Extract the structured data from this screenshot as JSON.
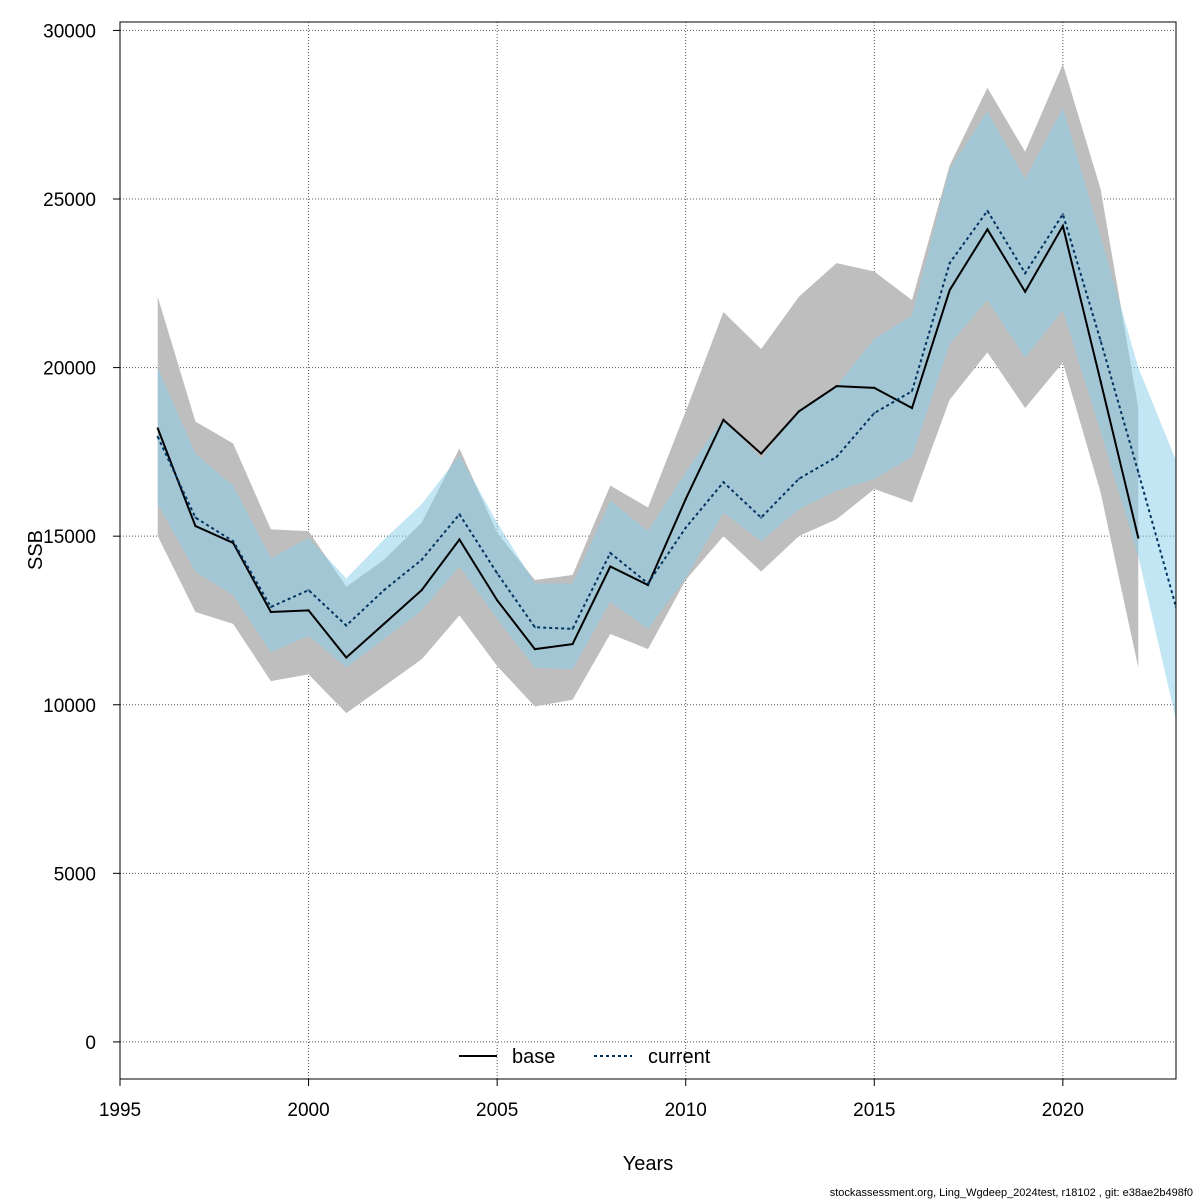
{
  "chart_data": {
    "type": "line",
    "title": "",
    "xlabel": "Years",
    "ylabel": "SSB",
    "xlim": [
      1995,
      2023
    ],
    "ylim": [
      -1100,
      30250
    ],
    "x_ticks": [
      1995,
      2000,
      2005,
      2010,
      2015,
      2020
    ],
    "y_ticks": [
      0,
      5000,
      10000,
      15000,
      20000,
      25000,
      30000
    ],
    "grid": true,
    "legend_position": "bottom-center",
    "series": [
      {
        "name": "base",
        "line_style": "solid",
        "line_color": "#000000",
        "band_color": "#bebebe",
        "x": [
          1996,
          1997,
          1998,
          1999,
          2000,
          2001,
          2002,
          2003,
          2004,
          2005,
          2006,
          2007,
          2008,
          2009,
          2010,
          2011,
          2012,
          2013,
          2014,
          2015,
          2016,
          2017,
          2018,
          2019,
          2020,
          2021,
          2022
        ],
        "values": [
          18200,
          15300,
          14800,
          12750,
          12800,
          11400,
          12400,
          13400,
          14900,
          13100,
          11650,
          11800,
          14100,
          13550,
          16100,
          18450,
          17450,
          18700,
          19450,
          19400,
          18800,
          22300,
          24100,
          22250,
          24200,
          19600,
          14950
        ],
        "lower": [
          15000,
          12750,
          12400,
          10700,
          10900,
          9750,
          10550,
          11350,
          12650,
          11150,
          9950,
          10150,
          12100,
          11650,
          13700,
          15000,
          13950,
          15000,
          15500,
          16400,
          16000,
          19050,
          20450,
          18800,
          20150,
          16300,
          11100
        ],
        "upper": [
          22100,
          18400,
          17750,
          15200,
          15150,
          13500,
          14300,
          15400,
          17600,
          15100,
          13700,
          13850,
          16500,
          15850,
          18700,
          21650,
          20550,
          22100,
          23100,
          22850,
          22000,
          26000,
          28300,
          26400,
          29000,
          25300,
          18800
        ]
      },
      {
        "name": "current",
        "line_style": "dotted",
        "line_color": "#00335f",
        "band_color": "#87ceeb",
        "x": [
          1996,
          1997,
          1998,
          1999,
          2000,
          2001,
          2002,
          2003,
          2004,
          2005,
          2006,
          2007,
          2008,
          2009,
          2010,
          2011,
          2012,
          2013,
          2014,
          2015,
          2016,
          2017,
          2018,
          2019,
          2020,
          2021,
          2022,
          2023
        ],
        "values": [
          17950,
          15550,
          14850,
          12900,
          13400,
          12350,
          13400,
          14300,
          15650,
          13900,
          12300,
          12250,
          14500,
          13600,
          15250,
          16600,
          15550,
          16700,
          17350,
          18650,
          19300,
          23100,
          24650,
          22800,
          24550,
          20800,
          16900,
          12900
        ],
        "lower": [
          15950,
          13950,
          13250,
          11550,
          12050,
          11100,
          11950,
          12800,
          14100,
          12550,
          11100,
          11050,
          13050,
          12250,
          13750,
          15700,
          14850,
          15800,
          16350,
          16700,
          17350,
          20700,
          22000,
          20300,
          21700,
          18100,
          14400,
          9550
        ],
        "upper": [
          20000,
          17450,
          16500,
          14350,
          14950,
          13750,
          14900,
          15950,
          17400,
          15400,
          13600,
          13600,
          16050,
          15150,
          16900,
          18500,
          17300,
          18750,
          19450,
          20850,
          21550,
          25900,
          27600,
          25600,
          27700,
          23900,
          20000,
          17250
        ]
      }
    ]
  },
  "footer_text": "stockassessment.org, Ling_Wgdeep_2024test, r18102 , git: e38ae2b498f0"
}
